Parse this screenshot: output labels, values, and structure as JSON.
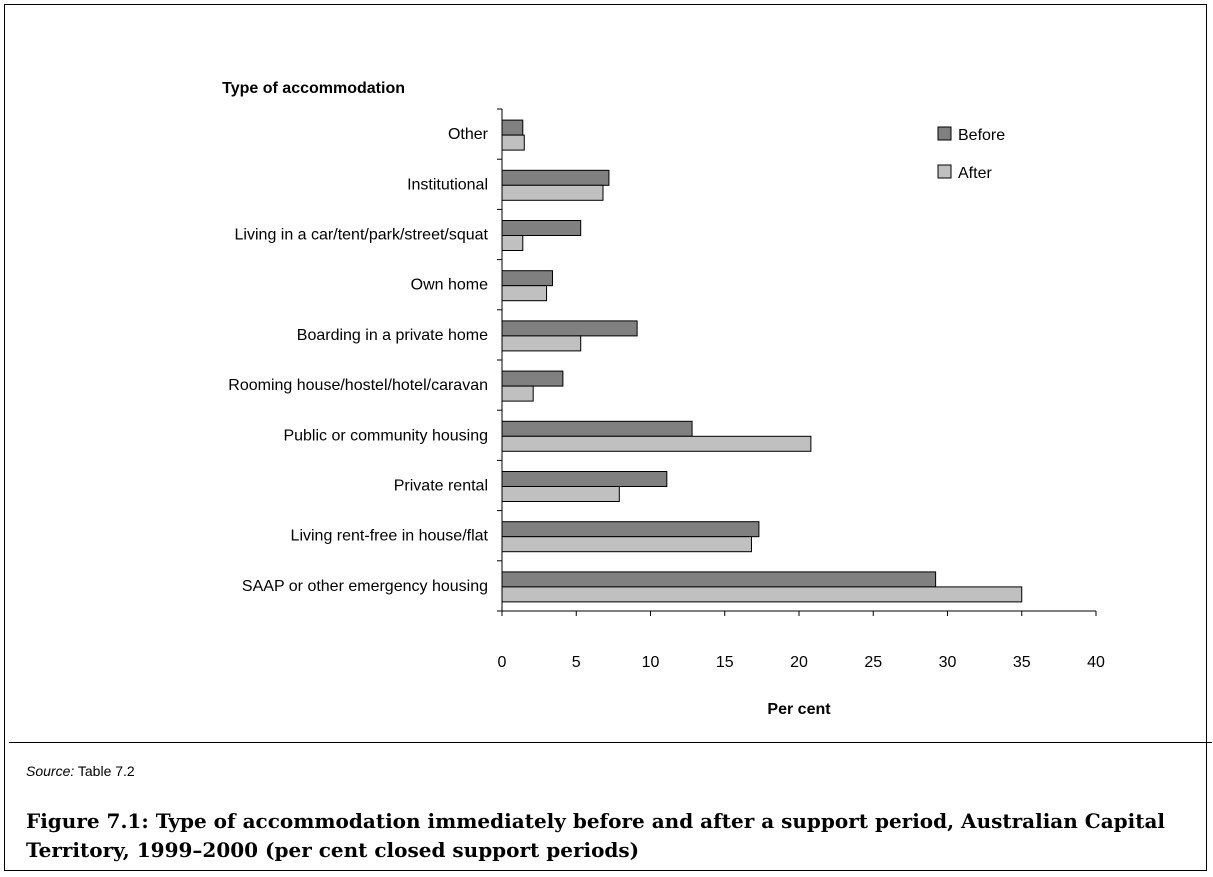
{
  "chart_data": {
    "type": "bar",
    "orientation": "horizontal",
    "y_axis_title": "Type of accommodation",
    "x_axis_title": "Per cent",
    "categories": [
      "Other",
      "Institutional",
      "Living in a car/tent/park/street/squat",
      "Own home",
      "Boarding in a private home",
      "Rooming house/hostel/hotel/caravan",
      "Public or community housing",
      "Private rental",
      "Living rent-free in house/flat",
      "SAAP or other emergency housing"
    ],
    "series": [
      {
        "name": "Before",
        "color": "#808080",
        "values": [
          1.4,
          7.2,
          5.3,
          3.4,
          9.1,
          4.1,
          12.8,
          11.1,
          17.3,
          29.2
        ]
      },
      {
        "name": "After",
        "color": "#c0c0c0",
        "values": [
          1.5,
          6.8,
          1.4,
          3.0,
          5.3,
          2.1,
          20.8,
          7.9,
          16.8,
          35.0
        ]
      }
    ],
    "xlim": [
      0,
      40
    ],
    "x_ticks": [
      "0",
      "5",
      "10",
      "15",
      "20",
      "25",
      "30",
      "35",
      "40"
    ],
    "legend_position": "top-right",
    "grid": false
  },
  "source": {
    "label": "Source:",
    "text": "Table 7.2"
  },
  "caption": "Figure 7.1: Type of accommodation immediately before and after a support period, Australian Capital Territory, 1999–2000 (per cent closed support periods)"
}
